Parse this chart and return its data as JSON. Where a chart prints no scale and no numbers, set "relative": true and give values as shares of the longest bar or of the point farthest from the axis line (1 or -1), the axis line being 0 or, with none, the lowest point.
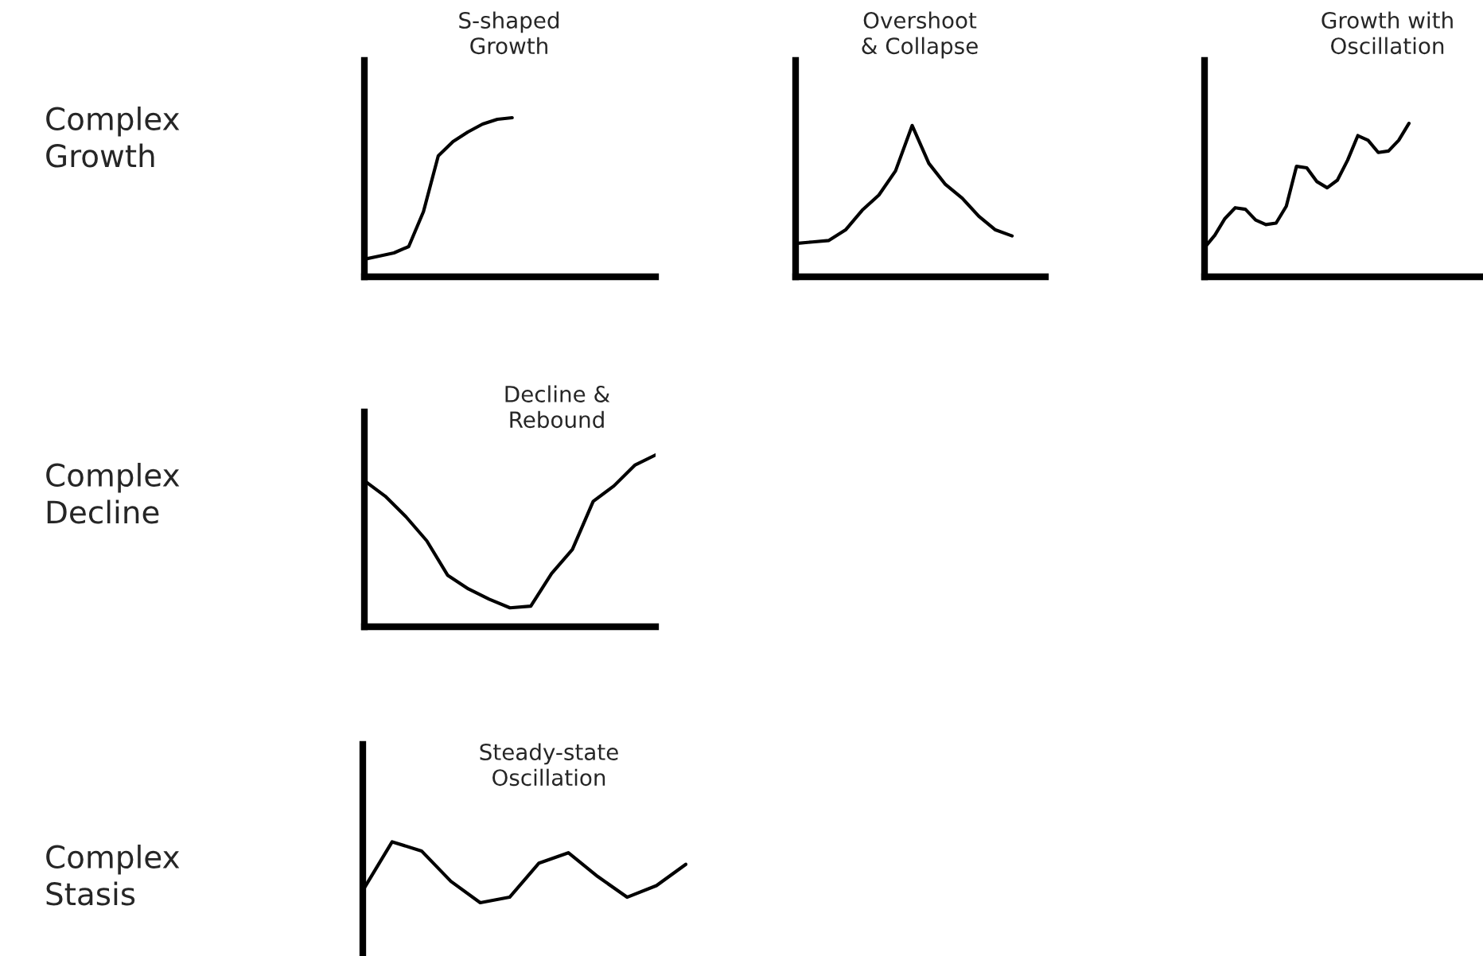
{
  "chart_data": [
    {
      "type": "line",
      "relative": true,
      "title": "S-shaped\nGrowth",
      "annotations": [
        "Complex\nGrowth"
      ],
      "categories": [
        null,
        null,
        null,
        null,
        null,
        null,
        null,
        null,
        null,
        null,
        null,
        null,
        null,
        null,
        null
      ],
      "series": [
        {
          "color": "#000000",
          "values": [
            0.11,
            0.13,
            0.15,
            0.19,
            0.41,
            0.76,
            0.85,
            0.91,
            0.96,
            0.99,
            1,
            null,
            null,
            null,
            null
          ]
        }
      ]
    },
    {
      "type": "line",
      "relative": true,
      "title": "Overshoot\n& Collapse",
      "categories": [
        null,
        null,
        null,
        null,
        null,
        null,
        null,
        null,
        null,
        null,
        null,
        null,
        null,
        null,
        null,
        null
      ],
      "series": [
        {
          "color": "#000000",
          "values": [
            0.22,
            0.23,
            0.24,
            0.31,
            0.44,
            0.54,
            0.7,
            1,
            0.75,
            0.61,
            0.52,
            0.4,
            0.31,
            0.27,
            null,
            null
          ]
        }
      ]
    },
    {
      "type": "line",
      "relative": true,
      "title": "Growth with\nOscillation",
      "categories": [
        null,
        null,
        null,
        null,
        null,
        null,
        null,
        null,
        null,
        null,
        null,
        null,
        null,
        null,
        null,
        null,
        null,
        null,
        null,
        null,
        null,
        null,
        null,
        null,
        null,
        null,
        null
      ],
      "series": [
        {
          "color": "#000000",
          "values": [
            0.19,
            0.27,
            0.38,
            0.45,
            0.44,
            0.37,
            0.34,
            0.35,
            0.46,
            0.72,
            0.71,
            0.62,
            0.58,
            0.63,
            0.76,
            0.92,
            0.89,
            0.81,
            0.82,
            0.89,
            1,
            null,
            null,
            null,
            null,
            null,
            null
          ]
        }
      ]
    },
    {
      "type": "line",
      "relative": true,
      "title": "Decline &\nRebound",
      "annotations": [
        "Complex\nDecline"
      ],
      "categories": [
        null,
        null,
        null,
        null,
        null,
        null,
        null,
        null,
        null,
        null,
        null,
        null,
        null,
        null,
        null
      ],
      "series": [
        {
          "color": "#000000",
          "values": [
            0.85,
            0.76,
            0.64,
            0.5,
            0.3,
            0.22,
            0.16,
            0.11,
            0.12,
            0.31,
            0.45,
            0.73,
            0.82,
            0.94,
            1
          ]
        }
      ]
    },
    {
      "type": "line",
      "relative": true,
      "title": "Steady-state\nOscillation",
      "annotations": [
        "Complex\nStasis"
      ],
      "categories": [
        null,
        null,
        null,
        null,
        null,
        null,
        null,
        null,
        null,
        null,
        null,
        null
      ],
      "series": [
        {
          "color": "#000000",
          "values": [
            0.2,
            1,
            0.85,
            0.35,
            0,
            0.09,
            0.65,
            0.82,
            0.43,
            0.09,
            0.28,
            0.63
          ]
        }
      ]
    }
  ]
}
